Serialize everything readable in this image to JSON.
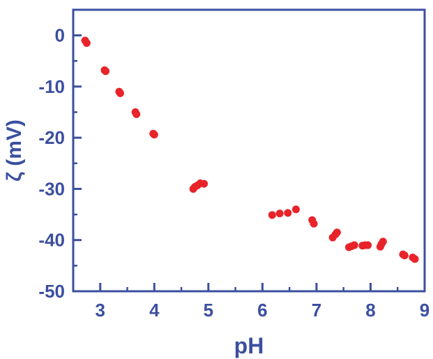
{
  "colors": {
    "axis": "#3b4fa0",
    "marker": "#e8232a"
  },
  "chart_data": {
    "type": "scatter",
    "title": "",
    "xlabel": "pH",
    "ylabel": "ζ (mV)",
    "xlim": [
      2.5,
      9
    ],
    "ylim": [
      -50,
      5
    ],
    "xticks": [
      3,
      4,
      5,
      6,
      7,
      8,
      9
    ],
    "yticks": [
      0,
      -10,
      -20,
      -30,
      -40,
      -50
    ],
    "grid": false,
    "series": [
      {
        "x": [
          2.72,
          2.75,
          3.08,
          3.1,
          3.35,
          3.37,
          3.65,
          3.67,
          3.98,
          4.0,
          4.72,
          4.75,
          4.8,
          4.85,
          4.92,
          6.18,
          6.32,
          6.47,
          6.62,
          6.92,
          6.95,
          7.3,
          7.35,
          7.38,
          7.6,
          7.65,
          7.7,
          7.85,
          7.9,
          7.95,
          8.18,
          8.2,
          8.23,
          8.6,
          8.63,
          8.78,
          8.82
        ],
        "y": [
          -1.0,
          -1.5,
          -6.8,
          -7.0,
          -11.0,
          -11.3,
          -15.0,
          -15.4,
          -19.2,
          -19.4,
          -30.0,
          -29.6,
          -29.3,
          -28.9,
          -29.0,
          -35.1,
          -34.8,
          -34.7,
          -34.0,
          -36.1,
          -36.8,
          -39.5,
          -38.9,
          -38.5,
          -41.4,
          -41.2,
          -41.0,
          -41.1,
          -41.0,
          -41.0,
          -41.3,
          -40.8,
          -40.3,
          -42.8,
          -43.0,
          -43.4,
          -43.7
        ]
      }
    ]
  }
}
